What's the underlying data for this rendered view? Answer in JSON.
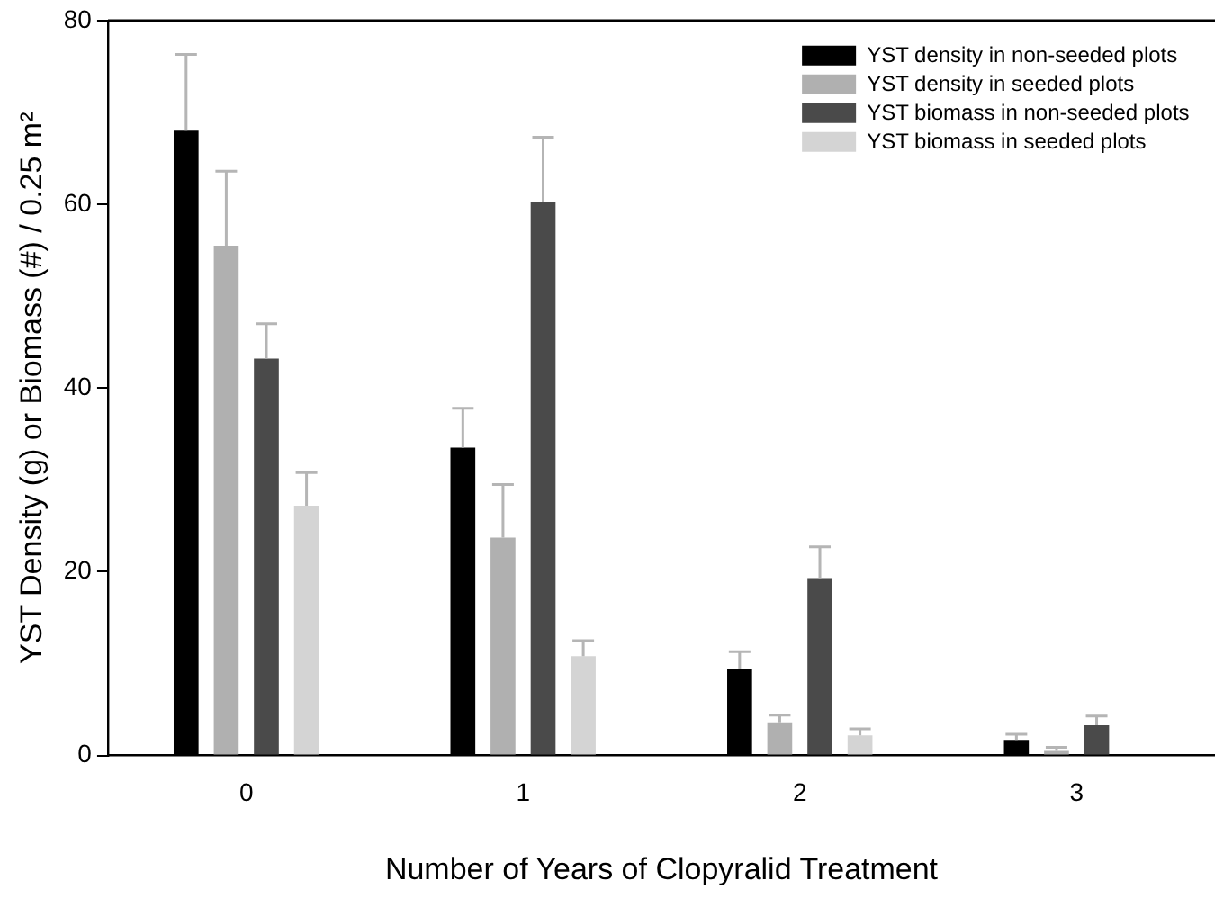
{
  "chart_data": {
    "type": "bar",
    "xlabel": "Number of Years of Clopyralid Treatment",
    "ylabel": "YST Density (g) or Biomass (#) / 0.25 m²",
    "categories": [
      "0",
      "1",
      "2",
      "3"
    ],
    "series": [
      {
        "name": "YST density in non-seeded plots",
        "color": "#000000",
        "values": [
          68,
          33.5,
          9.4,
          1.7
        ],
        "errors": [
          [
            68,
            76.3
          ],
          [
            33.5,
            37.8
          ],
          [
            9.4,
            11.3
          ],
          [
            1.7,
            2.3
          ]
        ]
      },
      {
        "name": "YST density in seeded plots",
        "color": "#b0b0b0",
        "values": [
          55.5,
          23.7,
          3.6,
          0.5
        ],
        "errors": [
          [
            55.5,
            63.6
          ],
          [
            23.7,
            29.5
          ],
          [
            3.6,
            4.4
          ],
          [
            0.5,
            0.9
          ]
        ]
      },
      {
        "name": "YST biomass in non-seeded plots",
        "color": "#4a4a4a",
        "values": [
          43.2,
          60.3,
          19.3,
          3.3
        ],
        "errors": [
          [
            43.2,
            47
          ],
          [
            60.3,
            67.3
          ],
          [
            19.3,
            22.7
          ],
          [
            3.3,
            4.3
          ]
        ]
      },
      {
        "name": "YST biomass in seeded plots",
        "color": "#d4d4d4",
        "values": [
          27.2,
          10.8,
          2.2,
          0
        ],
        "errors": [
          [
            27.2,
            30.8
          ],
          [
            10.8,
            12.5
          ],
          [
            2.2,
            2.9
          ],
          null
        ]
      }
    ],
    "ylim": [
      0,
      80
    ],
    "yticks": [
      0,
      20,
      40,
      60,
      80
    ],
    "grid": false,
    "legend": "top right"
  }
}
